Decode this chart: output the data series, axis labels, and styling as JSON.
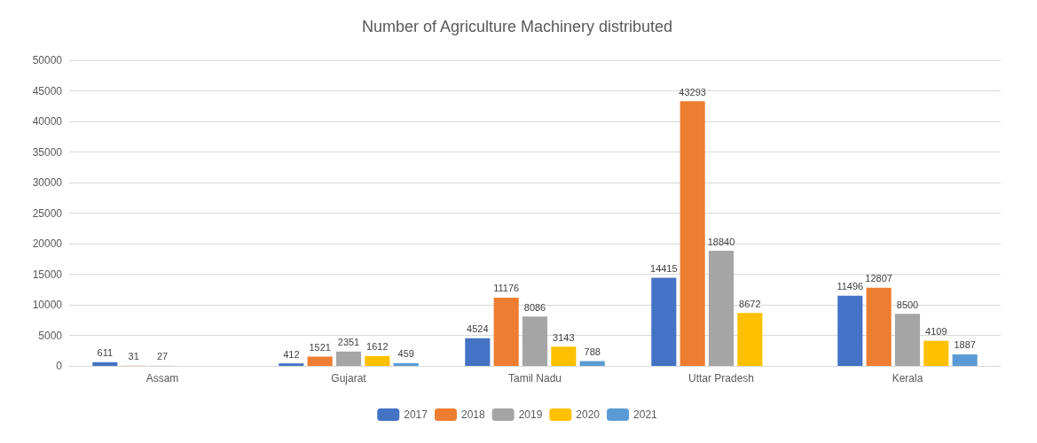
{
  "chart_data": {
    "type": "bar",
    "title": "Number of Agriculture Machinery distributed",
    "categories": [
      "Assam",
      "Gujarat",
      "Tamil Nadu",
      "Uttar Pradesh",
      "Kerala"
    ],
    "series": [
      {
        "name": "2017",
        "color": "#4472c4",
        "values": [
          611,
          412,
          4524,
          14415,
          11496
        ]
      },
      {
        "name": "2018",
        "color": "#ed7d31",
        "values": [
          31,
          1521,
          11176,
          43293,
          12807
        ]
      },
      {
        "name": "2019",
        "color": "#a5a5a5",
        "values": [
          27,
          2351,
          8086,
          18840,
          8500
        ]
      },
      {
        "name": "2020",
        "color": "#ffc000",
        "values": [
          null,
          1612,
          3143,
          8672,
          4109
        ]
      },
      {
        "name": "2021",
        "color": "#5b9bd5",
        "values": [
          null,
          459,
          788,
          null,
          1887
        ]
      }
    ],
    "ylim": [
      0,
      50000
    ],
    "yticks": [
      0,
      5000,
      10000,
      15000,
      20000,
      25000,
      30000,
      35000,
      40000,
      45000,
      50000
    ],
    "grid": "y",
    "legend": "bottom",
    "data_labels": true
  }
}
